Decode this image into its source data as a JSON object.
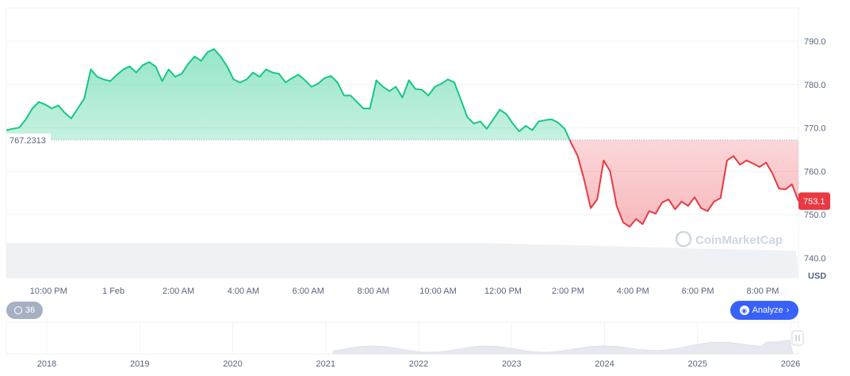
{
  "chart_data": {
    "type": "area",
    "unit": "USD",
    "baseline": "767.2313",
    "current_value": "753.1",
    "y_ticks": [
      "740.0",
      "750.0",
      "760.0",
      "770.0",
      "780.0",
      "790.0"
    ],
    "ylim": [
      735.4,
      797.7
    ],
    "x_ticks": [
      "10:00 PM",
      "1 Feb",
      "2:00 AM",
      "4:00 AM",
      "6:00 AM",
      "8:00 AM",
      "10:00 AM",
      "12:00 PM",
      "2:00 PM",
      "4:00 PM",
      "6:00 PM",
      "8:00 PM"
    ],
    "x_hours": [
      -2,
      0,
      2,
      4,
      6,
      8,
      10,
      12,
      14,
      16,
      18,
      20
    ],
    "xlim": [
      -3.3,
      21.1
    ],
    "series": [
      {
        "values": [
          [
            -3.3,
            769.5
          ],
          [
            -3.1,
            769.8
          ],
          [
            -2.9,
            770.1
          ],
          [
            -2.7,
            772
          ],
          [
            -2.5,
            774.5
          ],
          [
            -2.3,
            776
          ],
          [
            -2.1,
            775.4
          ],
          [
            -1.9,
            774.5
          ],
          [
            -1.7,
            775.2
          ],
          [
            -1.5,
            773.5
          ],
          [
            -1.3,
            772.2
          ],
          [
            -1.1,
            774.5
          ],
          [
            -0.9,
            776.8
          ],
          [
            -0.7,
            783.5
          ],
          [
            -0.5,
            781.8
          ],
          [
            -0.3,
            781.2
          ],
          [
            -0.1,
            780.8
          ],
          [
            0.1,
            782.2
          ],
          [
            0.3,
            783.5
          ],
          [
            0.5,
            784.2
          ],
          [
            0.7,
            782.8
          ],
          [
            0.9,
            784.5
          ],
          [
            1.1,
            785.2
          ],
          [
            1.3,
            784.2
          ],
          [
            1.5,
            780.8
          ],
          [
            1.7,
            783.5
          ],
          [
            1.9,
            781.8
          ],
          [
            2.1,
            782.5
          ],
          [
            2.3,
            784.8
          ],
          [
            2.5,
            786.5
          ],
          [
            2.7,
            785.5
          ],
          [
            2.9,
            787.5
          ],
          [
            3.1,
            788.2
          ],
          [
            3.3,
            786.5
          ],
          [
            3.5,
            784.2
          ],
          [
            3.7,
            781.2
          ],
          [
            3.9,
            780.5
          ],
          [
            4.1,
            781.2
          ],
          [
            4.3,
            782.8
          ],
          [
            4.5,
            781.8
          ],
          [
            4.7,
            783.5
          ],
          [
            4.9,
            782.8
          ],
          [
            5.1,
            782.5
          ],
          [
            5.3,
            780.5
          ],
          [
            5.5,
            781.5
          ],
          [
            5.7,
            782.3
          ],
          [
            5.9,
            781
          ],
          [
            6.1,
            779.5
          ],
          [
            6.3,
            780.2
          ],
          [
            6.5,
            781.5
          ],
          [
            6.7,
            782
          ],
          [
            6.9,
            780.5
          ],
          [
            7.1,
            777.5
          ],
          [
            7.3,
            777.5
          ],
          [
            7.5,
            776
          ],
          [
            7.7,
            774.5
          ],
          [
            7.9,
            774.5
          ],
          [
            8.1,
            781
          ],
          [
            8.3,
            779.5
          ],
          [
            8.5,
            778.5
          ],
          [
            8.7,
            779.5
          ],
          [
            8.9,
            777
          ],
          [
            9.1,
            781
          ],
          [
            9.3,
            779
          ],
          [
            9.5,
            778.8
          ],
          [
            9.7,
            777.5
          ],
          [
            9.9,
            779.5
          ],
          [
            10.1,
            780.2
          ],
          [
            10.3,
            781.2
          ],
          [
            10.5,
            780.5
          ],
          [
            10.7,
            776.5
          ],
          [
            10.9,
            772.5
          ],
          [
            11.1,
            771
          ],
          [
            11.3,
            771.5
          ],
          [
            11.5,
            769.8
          ],
          [
            11.7,
            772
          ],
          [
            11.9,
            774.2
          ],
          [
            12.1,
            773.2
          ],
          [
            12.3,
            771
          ],
          [
            12.5,
            769.2
          ],
          [
            12.7,
            770.5
          ],
          [
            12.9,
            769.5
          ],
          [
            13.1,
            771.5
          ],
          [
            13.3,
            771.8
          ],
          [
            13.5,
            772
          ],
          [
            13.7,
            771.2
          ],
          [
            13.9,
            769.8
          ],
          [
            14.1,
            766.5
          ],
          [
            14.3,
            763.5
          ],
          [
            14.5,
            758
          ],
          [
            14.7,
            751.5
          ],
          [
            14.9,
            753.5
          ],
          [
            15.1,
            762.5
          ],
          [
            15.3,
            760
          ],
          [
            15.5,
            752
          ],
          [
            15.7,
            748.2
          ],
          [
            15.9,
            747.2
          ],
          [
            16.1,
            749
          ],
          [
            16.3,
            747.8
          ],
          [
            16.5,
            750.8
          ],
          [
            16.7,
            750.2
          ],
          [
            16.9,
            752.8
          ],
          [
            17.1,
            753.5
          ],
          [
            17.3,
            751.2
          ],
          [
            17.5,
            753
          ],
          [
            17.7,
            752
          ],
          [
            17.9,
            754
          ],
          [
            18.1,
            751.5
          ],
          [
            18.3,
            750.8
          ],
          [
            18.5,
            753
          ],
          [
            18.7,
            753.8
          ],
          [
            18.9,
            762.5
          ],
          [
            19.1,
            763.5
          ],
          [
            19.3,
            761.5
          ],
          [
            19.5,
            762.5
          ],
          [
            19.7,
            761.8
          ],
          [
            19.9,
            761
          ],
          [
            20.1,
            762
          ],
          [
            20.3,
            759.5
          ],
          [
            20.5,
            756
          ],
          [
            20.7,
            755.8
          ],
          [
            20.9,
            757
          ],
          [
            21.1,
            753.1
          ]
        ]
      }
    ],
    "navigator": {
      "x_ticks": [
        "2018",
        "2019",
        "2020",
        "2021",
        "2022",
        "2023",
        "2024",
        "2025",
        "2026"
      ]
    },
    "colors": {
      "up_line": "#16c784",
      "down_line": "#ea3943",
      "current_badge": "#ea3943",
      "analyze_button": "#3861fb"
    }
  },
  "watermark": "CoinMarketCap",
  "history_button": {
    "count": "36",
    "icon": "history-icon"
  },
  "analyze_button": {
    "label": "Analyze",
    "icon": "analyze-icon",
    "chevron": "›"
  }
}
